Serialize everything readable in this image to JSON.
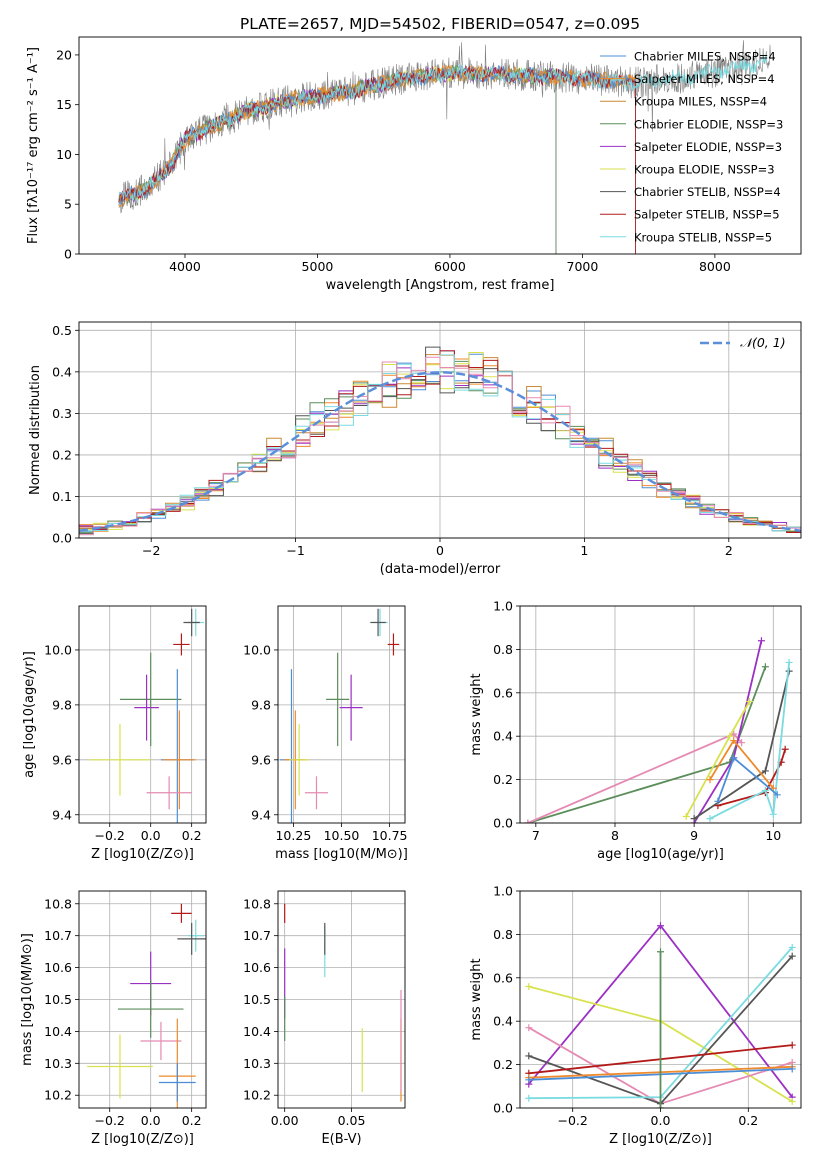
{
  "figure_title": "PLATE=2657, MJD=54502, FIBERID=0547, z=0.095",
  "colors": {
    "Chabrier MILES": "#4c8ed6",
    "Salpeter MILES": "#ee8a2b",
    "Kroupa MILES": "#c98a34",
    "Chabrier ELODIE": "#5b8e5b",
    "Salpeter ELODIE": "#9b30c4",
    "Kroupa ELODIE": "#d8e24e",
    "Chabrier STELIB": "#555555",
    "Salpeter STELIB": "#b31b1b",
    "Kroupa STELIB": "#7adbe0",
    "pink": "#e58bb3",
    "normal": "#5b8fd9"
  },
  "chart_data": [
    {
      "id": "spectrum",
      "type": "line",
      "xlabel": "wavelength [Angstrom, rest frame]",
      "ylabel": "Flux [fλ10⁻¹⁷ erg cm⁻² s⁻¹ A⁻¹]",
      "xlim": [
        3200,
        8650
      ],
      "ylim": [
        0,
        21.8
      ],
      "xticks": [
        "4000",
        "5000",
        "6000",
        "7000",
        "8000"
      ],
      "yticks": [
        "0",
        "5",
        "10",
        "15",
        "20"
      ],
      "grid": false,
      "legend_position": "top-right",
      "legend": [
        "Chabrier MILES, NSSP=4",
        "Salpeter MILES, NSSP=4",
        "Kroupa MILES, NSSP=4",
        "Chabrier ELODIE, NSSP=3",
        "Salpeter ELODIE, NSSP=3",
        "Kroupa ELODIE, NSSP=3",
        "Chabrier STELIB, NSSP=4",
        "Salpeter STELIB, NSSP=5",
        "Kroupa STELIB, NSSP=5"
      ],
      "continuum": [
        [
          3500,
          5.5
        ],
        [
          3700,
          6.5
        ],
        [
          3900,
          9.0
        ],
        [
          4000,
          11.5
        ],
        [
          4200,
          12.8
        ],
        [
          4500,
          14.5
        ],
        [
          4800,
          15.5
        ],
        [
          5200,
          16.2
        ],
        [
          5600,
          17.5
        ],
        [
          6000,
          18.2
        ],
        [
          6500,
          18.0
        ],
        [
          7000,
          17.6
        ],
        [
          7400,
          17.2
        ],
        [
          7800,
          17.8
        ],
        [
          8000,
          18.3
        ],
        [
          8400,
          19.3
        ]
      ]
    },
    {
      "id": "residuals",
      "type": "line",
      "xlabel": "(data-model)/error",
      "ylabel": "Normed distribution",
      "xlim": [
        -2.5,
        2.5
      ],
      "ylim": [
        0,
        0.52
      ],
      "xticks": [
        "−2",
        "−1",
        "0",
        "1",
        "2"
      ],
      "yticks": [
        "0.0",
        "0.1",
        "0.2",
        "0.3",
        "0.4",
        "0.5"
      ],
      "grid": true,
      "legend_position": "top-right",
      "legend": [
        "𝒩(0, 1)"
      ],
      "bin_width": 0.1,
      "gaussian": {
        "mean": 0,
        "sigma": 1
      }
    },
    {
      "id": "age-vs-Z",
      "type": "scatter",
      "xlabel": "Z [log10(Z/Z⊙)]",
      "ylabel": "age  [log10(age/yr)]",
      "xlim": [
        -0.35,
        0.27
      ],
      "ylim": [
        9.37,
        10.16
      ],
      "xticks": [
        "−0.2",
        "0.0",
        "0.2"
      ],
      "yticks": [
        "9.4",
        "9.6",
        "9.8",
        "10.0"
      ],
      "points": [
        {
          "model": "Kroupa STELIB",
          "x": 0.22,
          "y": 10.1,
          "xerr": 0.04,
          "yerr": 0.05
        },
        {
          "model": "Chabrier STELIB",
          "x": 0.2,
          "y": 10.1,
          "xerr": 0.04,
          "yerr": 0.05
        },
        {
          "model": "Salpeter STELIB",
          "x": 0.15,
          "y": 10.02,
          "xerr": 0.04,
          "yerr": 0.04
        },
        {
          "model": "Chabrier ELODIE",
          "x": 0.0,
          "y": 9.82,
          "xerr": 0.15,
          "yerr": 0.17
        },
        {
          "model": "Salpeter ELODIE",
          "x": -0.02,
          "y": 9.79,
          "xerr": 0.06,
          "yerr": 0.12
        },
        {
          "model": "Chabrier MILES",
          "x": 0.13,
          "y": 9.6,
          "xerr": 0.08,
          "yerr": 0.33
        },
        {
          "model": "Salpeter MILES",
          "x": 0.14,
          "y": 9.6,
          "xerr": 0.08,
          "yerr": 0.18
        },
        {
          "model": "Kroupa ELODIE",
          "x": -0.15,
          "y": 9.6,
          "xerr": 0.15,
          "yerr": 0.13
        },
        {
          "model": "pink",
          "x": 0.09,
          "y": 9.48,
          "xerr": 0.11,
          "yerr": 0.06
        }
      ]
    },
    {
      "id": "age-vs-mass",
      "type": "scatter",
      "xlabel": "mass [log10(M/M⊙)]",
      "ylabel": "",
      "xlim": [
        10.17,
        10.83
      ],
      "ylim": [
        9.37,
        10.16
      ],
      "xticks": [
        "10.25",
        "10.50",
        "10.75"
      ],
      "yticks": [
        "9.4",
        "9.6",
        "9.8",
        "10.0"
      ],
      "points": [
        {
          "model": "Kroupa STELIB",
          "x": 10.7,
          "y": 10.1,
          "xerr": 0.04,
          "yerr": 0.05
        },
        {
          "model": "Chabrier STELIB",
          "x": 10.69,
          "y": 10.1,
          "xerr": 0.04,
          "yerr": 0.05
        },
        {
          "model": "Salpeter STELIB",
          "x": 10.77,
          "y": 10.02,
          "xerr": 0.03,
          "yerr": 0.04
        },
        {
          "model": "Chabrier ELODIE",
          "x": 10.48,
          "y": 9.82,
          "xerr": 0.06,
          "yerr": 0.17
        },
        {
          "model": "Salpeter ELODIE",
          "x": 10.55,
          "y": 9.79,
          "xerr": 0.06,
          "yerr": 0.12
        },
        {
          "model": "Chabrier MILES",
          "x": 10.24,
          "y": 9.6,
          "xerr": 0.06,
          "yerr": 0.33
        },
        {
          "model": "Salpeter MILES",
          "x": 10.26,
          "y": 9.6,
          "xerr": 0.06,
          "yerr": 0.18
        },
        {
          "model": "Kroupa ELODIE",
          "x": 10.28,
          "y": 9.6,
          "xerr": 0.05,
          "yerr": 0.13
        },
        {
          "model": "pink",
          "x": 10.37,
          "y": 9.48,
          "xerr": 0.06,
          "yerr": 0.06
        }
      ]
    },
    {
      "id": "weight-vs-age",
      "type": "line",
      "xlabel": "age  [log10(age/yr)]",
      "ylabel": "mass weight",
      "xlim": [
        6.8,
        10.35
      ],
      "ylim": [
        0,
        1.0
      ],
      "xticks": [
        "7",
        "8",
        "9",
        "10"
      ],
      "yticks": [
        "0.0",
        "0.2",
        "0.4",
        "0.6",
        "0.8",
        "1.0"
      ],
      "series": [
        {
          "model": "Chabrier ELODIE",
          "x": [
            6.9,
            9.45,
            9.9
          ],
          "y": [
            0.0,
            0.28,
            0.72
          ]
        },
        {
          "model": "pink",
          "x": [
            6.9,
            9.5,
            9.6
          ],
          "y": [
            0.0,
            0.41,
            0.37
          ]
        },
        {
          "model": "Salpeter ELODIE",
          "x": [
            9.0,
            9.5,
            9.85
          ],
          "y": [
            0.0,
            0.3,
            0.84
          ]
        },
        {
          "model": "Kroupa ELODIE",
          "x": [
            8.9,
            9.45,
            9.7
          ],
          "y": [
            0.03,
            0.4,
            0.56
          ]
        },
        {
          "model": "Chabrier STELIB",
          "x": [
            9.0,
            9.9,
            10.2
          ],
          "y": [
            0.02,
            0.24,
            0.7
          ]
        },
        {
          "model": "Salpeter STELIB",
          "x": [
            9.3,
            9.9,
            10.1,
            10.15
          ],
          "y": [
            0.08,
            0.14,
            0.28,
            0.34
          ]
        },
        {
          "model": "Kroupa STELIB",
          "x": [
            9.2,
            9.9,
            10.0,
            10.2
          ],
          "y": [
            0.02,
            0.15,
            0.04,
            0.74
          ]
        },
        {
          "model": "Salpeter MILES",
          "x": [
            9.2,
            9.5,
            10.0
          ],
          "y": [
            0.2,
            0.38,
            0.16
          ]
        },
        {
          "model": "Chabrier MILES",
          "x": [
            9.3,
            9.5,
            10.05
          ],
          "y": [
            0.1,
            0.3,
            0.13
          ]
        }
      ]
    },
    {
      "id": "mass-vs-Z",
      "type": "scatter",
      "xlabel": "Z [log10(Z/Z⊙)]",
      "ylabel": "mass [log10(M/M⊙)]",
      "xlim": [
        -0.35,
        0.27
      ],
      "ylim": [
        10.16,
        10.84
      ],
      "xticks": [
        "−0.2",
        "0.0",
        "0.2"
      ],
      "yticks": [
        "10.2",
        "10.3",
        "10.4",
        "10.5",
        "10.6",
        "10.7",
        "10.8"
      ],
      "points": [
        {
          "model": "Salpeter STELIB",
          "x": 0.15,
          "y": 10.77,
          "xerr": 0.05,
          "yerr": 0.03
        },
        {
          "model": "Kroupa STELIB",
          "x": 0.22,
          "y": 10.7,
          "xerr": 0.04,
          "yerr": 0.05
        },
        {
          "model": "Chabrier STELIB",
          "x": 0.2,
          "y": 10.69,
          "xerr": 0.07,
          "yerr": 0.05
        },
        {
          "model": "Salpeter ELODIE",
          "x": 0.0,
          "y": 10.55,
          "xerr": 0.1,
          "yerr": 0.1
        },
        {
          "model": "Chabrier ELODIE",
          "x": 0.0,
          "y": 10.47,
          "xerr": 0.16,
          "yerr": 0.09
        },
        {
          "model": "pink",
          "x": 0.05,
          "y": 10.37,
          "xerr": 0.1,
          "yerr": 0.06
        },
        {
          "model": "Kroupa ELODIE",
          "x": -0.15,
          "y": 10.29,
          "xerr": 0.16,
          "yerr": 0.1
        },
        {
          "model": "Salpeter MILES",
          "x": 0.13,
          "y": 10.26,
          "xerr": 0.09,
          "yerr": 0.18
        },
        {
          "model": "Chabrier MILES",
          "x": 0.13,
          "y": 10.24,
          "xerr": 0.09,
          "yerr": 0.06
        }
      ]
    },
    {
      "id": "mass-vs-EBV",
      "type": "scatter",
      "xlabel": "E(B-V)",
      "ylabel": "",
      "xlim": [
        -0.005,
        0.09
      ],
      "ylim": [
        10.16,
        10.84
      ],
      "xticks": [
        "0.00",
        "0.05"
      ],
      "yticks": [
        "10.2",
        "10.3",
        "10.4",
        "10.5",
        "10.6",
        "10.7",
        "10.8"
      ],
      "points": [
        {
          "model": "Salpeter STELIB",
          "x": 0.0,
          "y": 10.77,
          "xerr": 0,
          "yerr": 0.03
        },
        {
          "model": "Kroupa STELIB",
          "x": 0.03,
          "y": 10.65,
          "xerr": 0,
          "yerr": 0.08
        },
        {
          "model": "Chabrier STELIB",
          "x": 0.03,
          "y": 10.69,
          "xerr": 0,
          "yerr": 0.05
        },
        {
          "model": "Salpeter ELODIE",
          "x": 0.0,
          "y": 10.55,
          "xerr": 0,
          "yerr": 0.11
        },
        {
          "model": "Chabrier ELODIE",
          "x": 0.0,
          "y": 10.44,
          "xerr": 0,
          "yerr": 0.07
        },
        {
          "model": "Kroupa ELODIE",
          "x": 0.058,
          "y": 10.31,
          "xerr": 0,
          "yerr": 0.1
        },
        {
          "model": "Salpeter MILES",
          "x": 0.087,
          "y": 10.31,
          "xerr": 0,
          "yerr": 0.13
        },
        {
          "model": "pink",
          "x": 0.087,
          "y": 10.37,
          "xerr": 0,
          "yerr": 0.16
        }
      ]
    },
    {
      "id": "weight-vs-Z",
      "type": "line",
      "xlabel": "Z [log10(Z/Z⊙)]",
      "ylabel": "mass weight",
      "xlim": [
        -0.32,
        0.32
      ],
      "ylim": [
        0,
        1.0
      ],
      "xticks": [
        "−0.2",
        "0.0",
        "0.2"
      ],
      "yticks": [
        "0.0",
        "0.2",
        "0.4",
        "0.6",
        "0.8",
        "1.0"
      ],
      "series": [
        {
          "model": "Salpeter ELODIE",
          "x": [
            -0.3,
            0.0,
            0.3
          ],
          "y": [
            0.11,
            0.84,
            0.05
          ]
        },
        {
          "model": "Kroupa ELODIE",
          "x": [
            -0.3,
            0.0,
            0.3
          ],
          "y": [
            0.56,
            0.4,
            0.03
          ]
        },
        {
          "model": "pink",
          "x": [
            -0.3,
            0.0,
            0.3
          ],
          "y": [
            0.37,
            0.02,
            0.21
          ]
        },
        {
          "model": "Chabrier STELIB",
          "x": [
            -0.3,
            0.0,
            0.3
          ],
          "y": [
            0.24,
            0.02,
            0.7
          ]
        },
        {
          "model": "Kroupa STELIB",
          "x": [
            -0.3,
            0.0,
            0.3
          ],
          "y": [
            0.045,
            0.05,
            0.74
          ]
        },
        {
          "model": "Salpeter STELIB",
          "x": [
            -0.3,
            0.3
          ],
          "y": [
            0.16,
            0.29
          ]
        },
        {
          "model": "Salpeter MILES",
          "x": [
            -0.3,
            0.3
          ],
          "y": [
            0.14,
            0.19
          ]
        },
        {
          "model": "Chabrier MILES",
          "x": [
            -0.3,
            0.3
          ],
          "y": [
            0.13,
            0.18
          ]
        },
        {
          "model": "Chabrier ELODIE",
          "x": [
            0.0,
            0.0
          ],
          "y": [
            0.0,
            0.72
          ]
        }
      ]
    }
  ]
}
